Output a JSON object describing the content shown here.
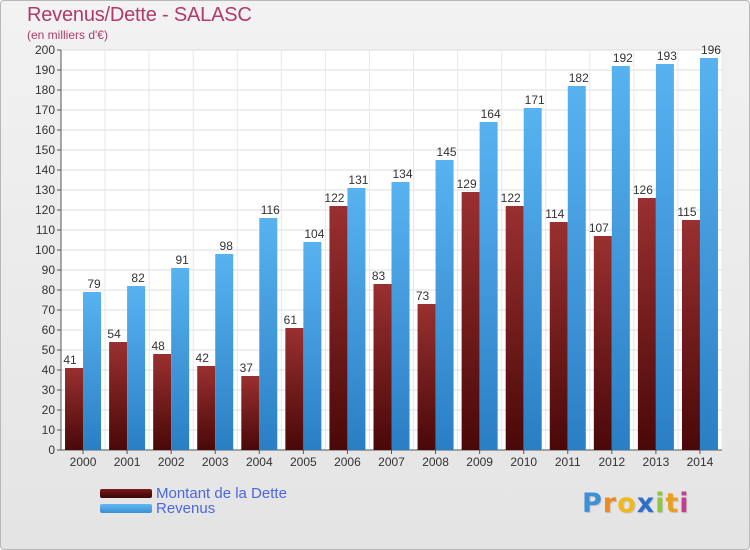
{
  "header": {
    "title": "Revenus/Dette - SALASC",
    "subtitle": "(en milliers d'€)"
  },
  "chart_data": {
    "type": "bar",
    "categories": [
      "2000",
      "2001",
      "2002",
      "2003",
      "2004",
      "2005",
      "2006",
      "2007",
      "2008",
      "2009",
      "2010",
      "2011",
      "2012",
      "2013",
      "2014"
    ],
    "series": [
      {
        "name": "Montant de la Dette",
        "color": "#8b2323",
        "values": [
          41,
          54,
          48,
          42,
          37,
          61,
          122,
          83,
          73,
          129,
          122,
          114,
          107,
          126,
          115
        ],
        "labels": [
          "41",
          "54",
          "48",
          "42",
          "37",
          "61",
          "122",
          "83",
          "73",
          "129",
          "122",
          "114",
          "107",
          "126",
          "115"
        ]
      },
      {
        "name": "Revenus",
        "color": "#4aa3e6",
        "values": [
          79,
          82,
          91,
          98,
          116,
          104,
          131,
          134,
          145,
          164,
          171,
          182,
          192,
          193,
          196
        ],
        "labels": [
          "79",
          "82",
          "91",
          "98",
          "116",
          "104",
          "131",
          "134",
          "145",
          "164",
          "171",
          "182",
          "192",
          "193",
          "196"
        ]
      }
    ],
    "ylim": [
      0,
      200
    ],
    "yticks": [
      "0",
      "10",
      "20",
      "30",
      "40",
      "50",
      "60",
      "70",
      "80",
      "90",
      "100",
      "110",
      "120",
      "130",
      "140",
      "150",
      "160",
      "170",
      "180",
      "190",
      "200"
    ],
    "grid": true,
    "legend": "bottom-left"
  },
  "legend": {
    "items": [
      {
        "label": "Montant de la Dette",
        "color": "#5c0f0f"
      },
      {
        "label": "Revenus",
        "color": "#4aa3e6"
      }
    ]
  },
  "logo": {
    "letters": [
      "P",
      "r",
      "o",
      "x",
      "i",
      "t",
      "i"
    ],
    "colors": [
      "#3c8fd8",
      "#f08a1c",
      "#f0b81c",
      "#2e6fc9",
      "#8cc83c",
      "#e8a020",
      "#c83c8c"
    ]
  }
}
